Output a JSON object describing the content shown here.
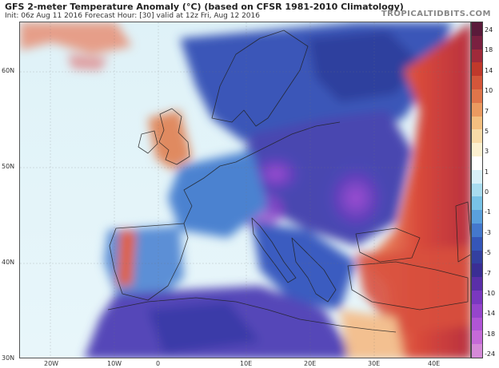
{
  "header": {
    "title": "GFS 2-meter Temperature Anomaly (°C) (based on CFSR 1981-2010 Climatology)",
    "subtitle": "Init: 06z Aug 11 2016   Forecast Hour: [30]   valid at 12z Fri, Aug 12 2016",
    "brand": "TROPICALTIDBITS.COM"
  },
  "map": {
    "latitude_labels": [
      "60N",
      "50N",
      "40N",
      "30N"
    ],
    "longitude_labels": [
      "20W",
      "10W",
      "0",
      "10E",
      "20E",
      "30E",
      "40E"
    ]
  },
  "colorbar": {
    "labels": [
      "24",
      "18",
      "14",
      "10",
      "7",
      "5",
      "3",
      "1",
      "0",
      "-1",
      "-3",
      "-5",
      "-7",
      "-10",
      "-14",
      "-18",
      "-24"
    ],
    "colors": [
      "#5a1a3a",
      "#7a2040",
      "#a02a3a",
      "#c0392b",
      "#d4563a",
      "#e0754a",
      "#eb9a60",
      "#f3bf80",
      "#f8dba8",
      "#fbf0d0",
      "#ffffff",
      "#d8f0f8",
      "#a8dcef",
      "#78c2e6",
      "#5aa0dc",
      "#4478cc",
      "#3556b8",
      "#3340a0",
      "#3a2e94",
      "#5a2fa8",
      "#7a38c0",
      "#9645cc",
      "#b055d6",
      "#c56ad8",
      "#d58ad8"
    ]
  }
}
